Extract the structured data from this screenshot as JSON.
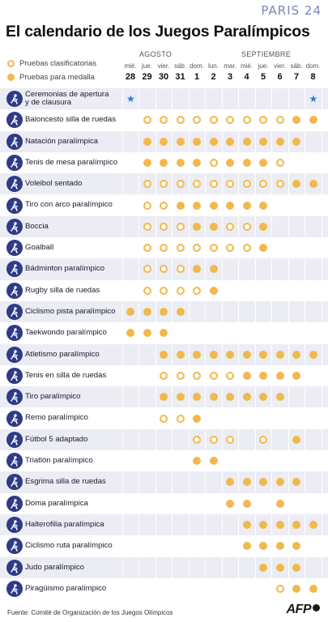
{
  "brand": {
    "text": "PARIS 24"
  },
  "title": "El calendario de los Juegos Paralímpicos",
  "legend": {
    "qualifying": "Pruebas clasificatorias",
    "medal": "Pruebas para medalla"
  },
  "months": [
    "AGOSTO",
    "SEPTIEMBRE"
  ],
  "days": [
    {
      "dow": "mié.",
      "num": "28"
    },
    {
      "dow": "jue.",
      "num": "29"
    },
    {
      "dow": "vier.",
      "num": "30"
    },
    {
      "dow": "sáb.",
      "num": "31"
    },
    {
      "dow": "dom.",
      "num": "1"
    },
    {
      "dow": "lun.",
      "num": "2"
    },
    {
      "dow": "mar.",
      "num": "3"
    },
    {
      "dow": "mié.",
      "num": "4"
    },
    {
      "dow": "jue.",
      "num": "5"
    },
    {
      "dow": "vier.",
      "num": "6"
    },
    {
      "dow": "sáb.",
      "num": "7"
    },
    {
      "dow": "dom.",
      "num": "8"
    }
  ],
  "colors": {
    "event": "#f2b84b",
    "icon_bg": "#2f3b86",
    "ceremony_star": "#2f79d8",
    "row_shade": "#ececf4"
  },
  "cell_legend": {
    "q": "qualifying event",
    "m": "medal event",
    "s": "ceremony (star)",
    ".": "no event"
  },
  "sports": [
    {
      "name": "Ceremonias de apertura\ny de clausura",
      "icon": "ceremony-icon",
      "cells": "s..........s"
    },
    {
      "name": "Baloncesto silla de ruedas",
      "icon": "wheelchair-basketball-icon",
      "cells": ".qqqqqqqqqmm"
    },
    {
      "name": "Natación paralímpica",
      "icon": "swimming-icon",
      "cells": ".mmmmmmmmmm."
    },
    {
      "name": "Tenis de mesa paralímpico",
      "icon": "table-tennis-icon",
      "cells": ".mmmmqmmmq.."
    },
    {
      "name": "Voleibol sentado",
      "icon": "sitting-volleyball-icon",
      "cells": ".qqqqqqqqqmm"
    },
    {
      "name": "Tiro con arco paralímpico",
      "icon": "archery-icon",
      "cells": ".qqmmmmmm..."
    },
    {
      "name": "Boccia",
      "icon": "boccia-icon",
      "cells": ".qqqmmqqm..."
    },
    {
      "name": "Goalball",
      "icon": "goalball-icon",
      "cells": ".qqqqqqqm..."
    },
    {
      "name": "Bádminton paralímpico",
      "icon": "badminton-icon",
      "cells": ".qqqmm......"
    },
    {
      "name": "Rugby silla de ruedas",
      "icon": "wheelchair-rugby-icon",
      "cells": ".qqqqm......"
    },
    {
      "name": "Ciclismo pista paralímpico",
      "icon": "track-cycling-icon",
      "cells": "mmmm........"
    },
    {
      "name": "Taekwondo paralímpico",
      "icon": "taekwondo-icon",
      "cells": "mmm........."
    },
    {
      "name": "Atletismo paralímpico",
      "icon": "athletics-icon",
      "cells": "..mmmmmmmmmm"
    },
    {
      "name": "Tenis en silla de ruedas",
      "icon": "wheelchair-tennis-icon",
      "cells": "..qqqqqmmmm."
    },
    {
      "name": "Tiro paralímpico",
      "icon": "shooting-icon",
      "cells": "..mmmmmmmm.."
    },
    {
      "name": "Remo paralímpico",
      "icon": "rowing-icon",
      "cells": "..qqm......."
    },
    {
      "name": "Fútbol 5 adaptado",
      "icon": "blind-football-icon",
      "cells": "....qqq.q.m."
    },
    {
      "name": "Triatlón paralímpico",
      "icon": "triathlon-icon",
      "cells": "....mm......"
    },
    {
      "name": "Esgrima silla de ruedas",
      "icon": "wheelchair-fencing-icon",
      "cells": "......mmmmm."
    },
    {
      "name": "Doma paralímpica",
      "icon": "equestrian-icon",
      "cells": "......mm.m.."
    },
    {
      "name": "Halterofilia paralímpica",
      "icon": "powerlifting-icon",
      "cells": ".......mmmmm"
    },
    {
      "name": "Ciclismo ruta paralímpico",
      "icon": "road-cycling-icon",
      "cells": ".......mmmm."
    },
    {
      "name": "Judo paralímpico",
      "icon": "judo-icon",
      "cells": "........mmm."
    },
    {
      "name": "Piragüismo paralímpico",
      "icon": "canoe-icon",
      "cells": ".........qmm"
    }
  ],
  "source": "Fuente: Comité de Organización de los Juegos Olímpicos",
  "agency": "AFP"
}
